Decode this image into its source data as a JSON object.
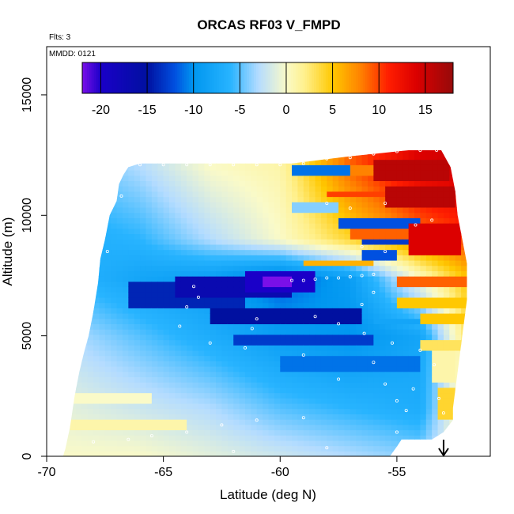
{
  "chart_data": {
    "type": "heatmap",
    "title": "ORCAS RF03 V_FMPD",
    "top_left_label": "Flts: 3",
    "inner_label": "MMDD: 0121",
    "xlabel": "Latitude (deg N)",
    "ylabel": "Altitude (m)",
    "xlim": [
      -70,
      -51
    ],
    "ylim": [
      0,
      17000
    ],
    "x_ticks": [
      -70,
      -65,
      -60,
      -55
    ],
    "x_tick_labels": [
      "-70",
      "-65",
      "-60",
      "-55"
    ],
    "y_ticks": [
      0,
      5000,
      10000,
      15000
    ],
    "y_tick_labels": [
      "0",
      "5000",
      "10000",
      "15000"
    ],
    "colorbar": {
      "position": "top-inside",
      "range": [
        -22,
        18
      ],
      "ticks": [
        -20,
        -15,
        -10,
        -5,
        0,
        5,
        10,
        15
      ],
      "tick_labels": [
        "-20",
        "-15",
        "-10",
        "-5",
        "0",
        "5",
        "10",
        "15"
      ],
      "color_stops": [
        {
          "v": -22,
          "color": "#7a10e8"
        },
        {
          "v": -20,
          "color": "#1a00c8"
        },
        {
          "v": -15,
          "color": "#0010a0"
        },
        {
          "v": -12,
          "color": "#0050e0"
        },
        {
          "v": -10,
          "color": "#0096f0"
        },
        {
          "v": -6,
          "color": "#28b4ff"
        },
        {
          "v": -3,
          "color": "#b4dcff"
        },
        {
          "v": 0,
          "color": "#fafac8"
        },
        {
          "v": 2,
          "color": "#fff08c"
        },
        {
          "v": 5,
          "color": "#ffc800"
        },
        {
          "v": 8,
          "color": "#ff8200"
        },
        {
          "v": 11,
          "color": "#ff1e00"
        },
        {
          "v": 14,
          "color": "#dc0000"
        },
        {
          "v": 18,
          "color": "#960a0a"
        }
      ]
    },
    "aircraft_arrow_latitude": -53,
    "field_outline": [
      [
        -69.3,
        0
      ],
      [
        -69.2,
        300
      ],
      [
        -69.0,
        1200
      ],
      [
        -68.8,
        2500
      ],
      [
        -68.6,
        3500
      ],
      [
        -68.4,
        4300
      ],
      [
        -68.2,
        5000
      ],
      [
        -68.0,
        6000
      ],
      [
        -67.8,
        7200
      ],
      [
        -67.7,
        8200
      ],
      [
        -67.5,
        9000
      ],
      [
        -67.3,
        10000
      ],
      [
        -67.0,
        10600
      ],
      [
        -66.9,
        11300
      ],
      [
        -66.7,
        11700
      ],
      [
        -66.5,
        12000
      ],
      [
        -66.0,
        12150
      ],
      [
        -62.0,
        12150
      ],
      [
        -59.5,
        12150
      ],
      [
        -57.0,
        12450
      ],
      [
        -56.0,
        12550
      ],
      [
        -54.5,
        12700
      ],
      [
        -53.1,
        12700
      ],
      [
        -52.7,
        12000
      ],
      [
        -52.5,
        11000
      ],
      [
        -52.4,
        10000
      ],
      [
        -52.2,
        9000
      ],
      [
        -52.0,
        8000
      ],
      [
        -52.0,
        6500
      ],
      [
        -52.2,
        5000
      ],
      [
        -52.4,
        3500
      ],
      [
        -52.6,
        2000
      ],
      [
        -52.6,
        1500
      ],
      [
        -53.0,
        1000
      ],
      [
        -53.5,
        700
      ],
      [
        -54.8,
        700
      ],
      [
        -55.0,
        400
      ],
      [
        -55.3,
        0
      ]
    ],
    "background_field": [
      {
        "lat": -69.0,
        "values": [
          {
            "alt": 0,
            "v": 0
          },
          {
            "alt": 2000,
            "v": -1
          },
          {
            "alt": 5000,
            "v": -3
          },
          {
            "alt": 7400,
            "v": -6
          },
          {
            "alt": 9000,
            "v": -7
          },
          {
            "alt": 12000,
            "v": -5
          }
        ]
      },
      {
        "lat": -66.0,
        "values": [
          {
            "alt": 0,
            "v": 0
          },
          {
            "alt": 2000,
            "v": -2
          },
          {
            "alt": 5000,
            "v": -5
          },
          {
            "alt": 7400,
            "v": -8
          },
          {
            "alt": 9000,
            "v": -6
          },
          {
            "alt": 12000,
            "v": -3
          }
        ]
      },
      {
        "lat": -63.0,
        "values": [
          {
            "alt": 0,
            "v": -1
          },
          {
            "alt": 2000,
            "v": -3
          },
          {
            "alt": 5000,
            "v": -7
          },
          {
            "alt": 7400,
            "v": -9
          },
          {
            "alt": 9000,
            "v": -3
          },
          {
            "alt": 12000,
            "v": 0
          }
        ]
      },
      {
        "lat": -60.0,
        "values": [
          {
            "alt": 0,
            "v": -2
          },
          {
            "alt": 2000,
            "v": -5
          },
          {
            "alt": 5000,
            "v": -9
          },
          {
            "alt": 7400,
            "v": -12
          },
          {
            "alt": 9000,
            "v": 0
          },
          {
            "alt": 12000,
            "v": 1
          }
        ]
      },
      {
        "lat": -57.0,
        "values": [
          {
            "alt": 0,
            "v": -3
          },
          {
            "alt": 2000,
            "v": -6
          },
          {
            "alt": 5000,
            "v": -10
          },
          {
            "alt": 7400,
            "v": -9
          },
          {
            "alt": 9000,
            "v": 4
          },
          {
            "alt": 12000,
            "v": 9
          }
        ]
      },
      {
        "lat": -54.0,
        "values": [
          {
            "alt": 0,
            "v": -4
          },
          {
            "alt": 2000,
            "v": -7
          },
          {
            "alt": 5000,
            "v": -8
          },
          {
            "alt": 7400,
            "v": 0
          },
          {
            "alt": 9000,
            "v": 8
          },
          {
            "alt": 12000,
            "v": 14
          }
        ]
      },
      {
        "lat": -52.0,
        "values": [
          {
            "alt": 0,
            "v": 1
          },
          {
            "alt": 2000,
            "v": 2
          },
          {
            "alt": 5000,
            "v": 3
          },
          {
            "alt": 7400,
            "v": 5
          },
          {
            "alt": 9000,
            "v": 10
          },
          {
            "alt": 12000,
            "v": 15
          }
        ]
      }
    ],
    "features": [
      {
        "lat_min": -66.5,
        "lat_max": -61.5,
        "alt_min": 6100,
        "alt_max": 7300,
        "v": -14
      },
      {
        "lat_min": -64.5,
        "lat_max": -59.5,
        "alt_min": 6600,
        "alt_max": 7500,
        "v": -17
      },
      {
        "lat_min": -61.5,
        "lat_max": -58.5,
        "alt_min": 6900,
        "alt_max": 7700,
        "v": -20
      },
      {
        "lat_min": -60.8,
        "lat_max": -59.4,
        "alt_min": 7000,
        "alt_max": 7400,
        "v": -22
      },
      {
        "lat_min": -63.0,
        "lat_max": -56.5,
        "alt_min": 5500,
        "alt_max": 6100,
        "v": -15
      },
      {
        "lat_min": -62.0,
        "lat_max": -56.0,
        "alt_min": 4600,
        "alt_max": 5100,
        "v": -13
      },
      {
        "lat_min": -60.0,
        "lat_max": -54.0,
        "alt_min": 3600,
        "alt_max": 4200,
        "v": -11
      },
      {
        "lat_min": -69.0,
        "lat_max": -64.0,
        "alt_min": 1000,
        "alt_max": 1500,
        "v": 1
      },
      {
        "lat_min": -69.0,
        "lat_max": -65.5,
        "alt_min": 2200,
        "alt_max": 2700,
        "v": 0
      },
      {
        "lat_min": -59.6,
        "lat_max": -57.0,
        "alt_min": 11700,
        "alt_max": 12200,
        "v": -11
      },
      {
        "lat_min": -57.0,
        "lat_max": -53.5,
        "alt_min": 11700,
        "alt_max": 12200,
        "v": 8
      },
      {
        "lat_min": -56.0,
        "lat_max": -52.8,
        "alt_min": 11400,
        "alt_max": 12300,
        "v": 16
      },
      {
        "lat_min": -58.0,
        "lat_max": -55.5,
        "alt_min": 10700,
        "alt_max": 11100,
        "v": 10
      },
      {
        "lat_min": -55.5,
        "lat_max": -52.5,
        "alt_min": 10300,
        "alt_max": 11200,
        "v": 16
      },
      {
        "lat_min": -59.5,
        "lat_max": -57.5,
        "alt_min": 10100,
        "alt_max": 10500,
        "v": -4
      },
      {
        "lat_min": -57.5,
        "lat_max": -54.0,
        "alt_min": 9500,
        "alt_max": 9900,
        "v": -12
      },
      {
        "lat_min": -57.0,
        "lat_max": -54.5,
        "alt_min": 9100,
        "alt_max": 9400,
        "v": 9
      },
      {
        "lat_min": -56.5,
        "lat_max": -54.5,
        "alt_min": 8800,
        "alt_max": 9050,
        "v": -13
      },
      {
        "lat_min": -56.5,
        "lat_max": -55.0,
        "alt_min": 8200,
        "alt_max": 8500,
        "v": -12
      },
      {
        "lat_min": -54.5,
        "lat_max": -52.3,
        "alt_min": 8300,
        "alt_max": 9600,
        "v": 14
      },
      {
        "lat_min": -59.0,
        "lat_max": -56.0,
        "alt_min": 8000,
        "alt_max": 8200,
        "v": 6
      },
      {
        "lat_min": -55.0,
        "lat_max": -52.0,
        "alt_min": 7000,
        "alt_max": 7500,
        "v": 9
      },
      {
        "lat_min": -55.0,
        "lat_max": -52.0,
        "alt_min": 6200,
        "alt_max": 6600,
        "v": 5
      },
      {
        "lat_min": -56.0,
        "lat_max": -53.0,
        "alt_min": 5400,
        "alt_max": 5800,
        "v": -8
      },
      {
        "lat_min": -54.0,
        "lat_max": -52.0,
        "alt_min": 5600,
        "alt_max": 6000,
        "v": 5
      },
      {
        "lat_min": -54.0,
        "lat_max": -52.0,
        "alt_min": 4400,
        "alt_max": 4800,
        "v": 3
      },
      {
        "lat_min": -53.5,
        "lat_max": -52.4,
        "alt_min": 3000,
        "alt_max": 4300,
        "v": 1
      },
      {
        "lat_min": -53.2,
        "lat_max": -52.5,
        "alt_min": 1500,
        "alt_max": 2800,
        "v": 4
      }
    ],
    "flight_points": [
      {
        "lat": -66.0,
        "alt": 12100
      },
      {
        "lat": -65.0,
        "alt": 12100
      },
      {
        "lat": -64.0,
        "alt": 12100
      },
      {
        "lat": -63.0,
        "alt": 12100
      },
      {
        "lat": -62.0,
        "alt": 12100
      },
      {
        "lat": -61.0,
        "alt": 12100
      },
      {
        "lat": -60.0,
        "alt": 12100
      },
      {
        "lat": -59.0,
        "alt": 12150
      },
      {
        "lat": -58.0,
        "alt": 12350
      },
      {
        "lat": -57.0,
        "alt": 12400
      },
      {
        "lat": -56.0,
        "alt": 12550
      },
      {
        "lat": -55.0,
        "alt": 12650
      },
      {
        "lat": -54.0,
        "alt": 12700
      },
      {
        "lat": -53.3,
        "alt": 12700
      },
      {
        "lat": -59.5,
        "alt": 7300
      },
      {
        "lat": -59.0,
        "alt": 7300
      },
      {
        "lat": -58.5,
        "alt": 7350
      },
      {
        "lat": -58.0,
        "alt": 7400
      },
      {
        "lat": -57.5,
        "alt": 7400
      },
      {
        "lat": -57.0,
        "alt": 7450
      },
      {
        "lat": -56.5,
        "alt": 7500
      },
      {
        "lat": -56.0,
        "alt": 7550
      },
      {
        "lat": -63.7,
        "alt": 7050
      },
      {
        "lat": -63.5,
        "alt": 6600
      },
      {
        "lat": -64.0,
        "alt": 6200
      },
      {
        "lat": -61.0,
        "alt": 5700
      },
      {
        "lat": -61.2,
        "alt": 5300
      },
      {
        "lat": -64.3,
        "alt": 5400
      },
      {
        "lat": -63.0,
        "alt": 4700
      },
      {
        "lat": -61.5,
        "alt": 4500
      },
      {
        "lat": -59.0,
        "alt": 4200
      },
      {
        "lat": -56.0,
        "alt": 3900
      },
      {
        "lat": -57.5,
        "alt": 3200
      },
      {
        "lat": -55.5,
        "alt": 3000
      },
      {
        "lat": -54.3,
        "alt": 2800
      },
      {
        "lat": -55.0,
        "alt": 2300
      },
      {
        "lat": -54.6,
        "alt": 1900
      },
      {
        "lat": -59.0,
        "alt": 1600
      },
      {
        "lat": -61.0,
        "alt": 1500
      },
      {
        "lat": -62.5,
        "alt": 1300
      },
      {
        "lat": -64.0,
        "alt": 1000
      },
      {
        "lat": -65.5,
        "alt": 850
      },
      {
        "lat": -68.0,
        "alt": 600
      },
      {
        "lat": -66.5,
        "alt": 700
      },
      {
        "lat": -62.0,
        "alt": 200
      },
      {
        "lat": -58.0,
        "alt": 350
      },
      {
        "lat": -55.0,
        "alt": 1000
      },
      {
        "lat": -67.4,
        "alt": 10000
      },
      {
        "lat": -67.7,
        "alt": 9000
      },
      {
        "lat": -67.4,
        "alt": 8500
      },
      {
        "lat": -66.8,
        "alt": 10800
      },
      {
        "lat": -58.0,
        "alt": 10500
      },
      {
        "lat": -57.0,
        "alt": 10300
      },
      {
        "lat": -55.5,
        "alt": 10500
      },
      {
        "lat": -54.2,
        "alt": 9600
      },
      {
        "lat": -53.5,
        "alt": 9800
      },
      {
        "lat": -56.5,
        "alt": 8700
      },
      {
        "lat": -55.5,
        "alt": 8500
      },
      {
        "lat": -56.0,
        "alt": 6800
      },
      {
        "lat": -56.5,
        "alt": 6300
      },
      {
        "lat": -58.5,
        "alt": 5800
      },
      {
        "lat": -57.5,
        "alt": 5500
      },
      {
        "lat": -56.4,
        "alt": 5100
      },
      {
        "lat": -55.2,
        "alt": 4700
      },
      {
        "lat": -54.0,
        "alt": 4400
      },
      {
        "lat": -53.4,
        "alt": 3800
      },
      {
        "lat": -53.2,
        "alt": 2400
      },
      {
        "lat": -53.0,
        "alt": 1800
      }
    ]
  }
}
